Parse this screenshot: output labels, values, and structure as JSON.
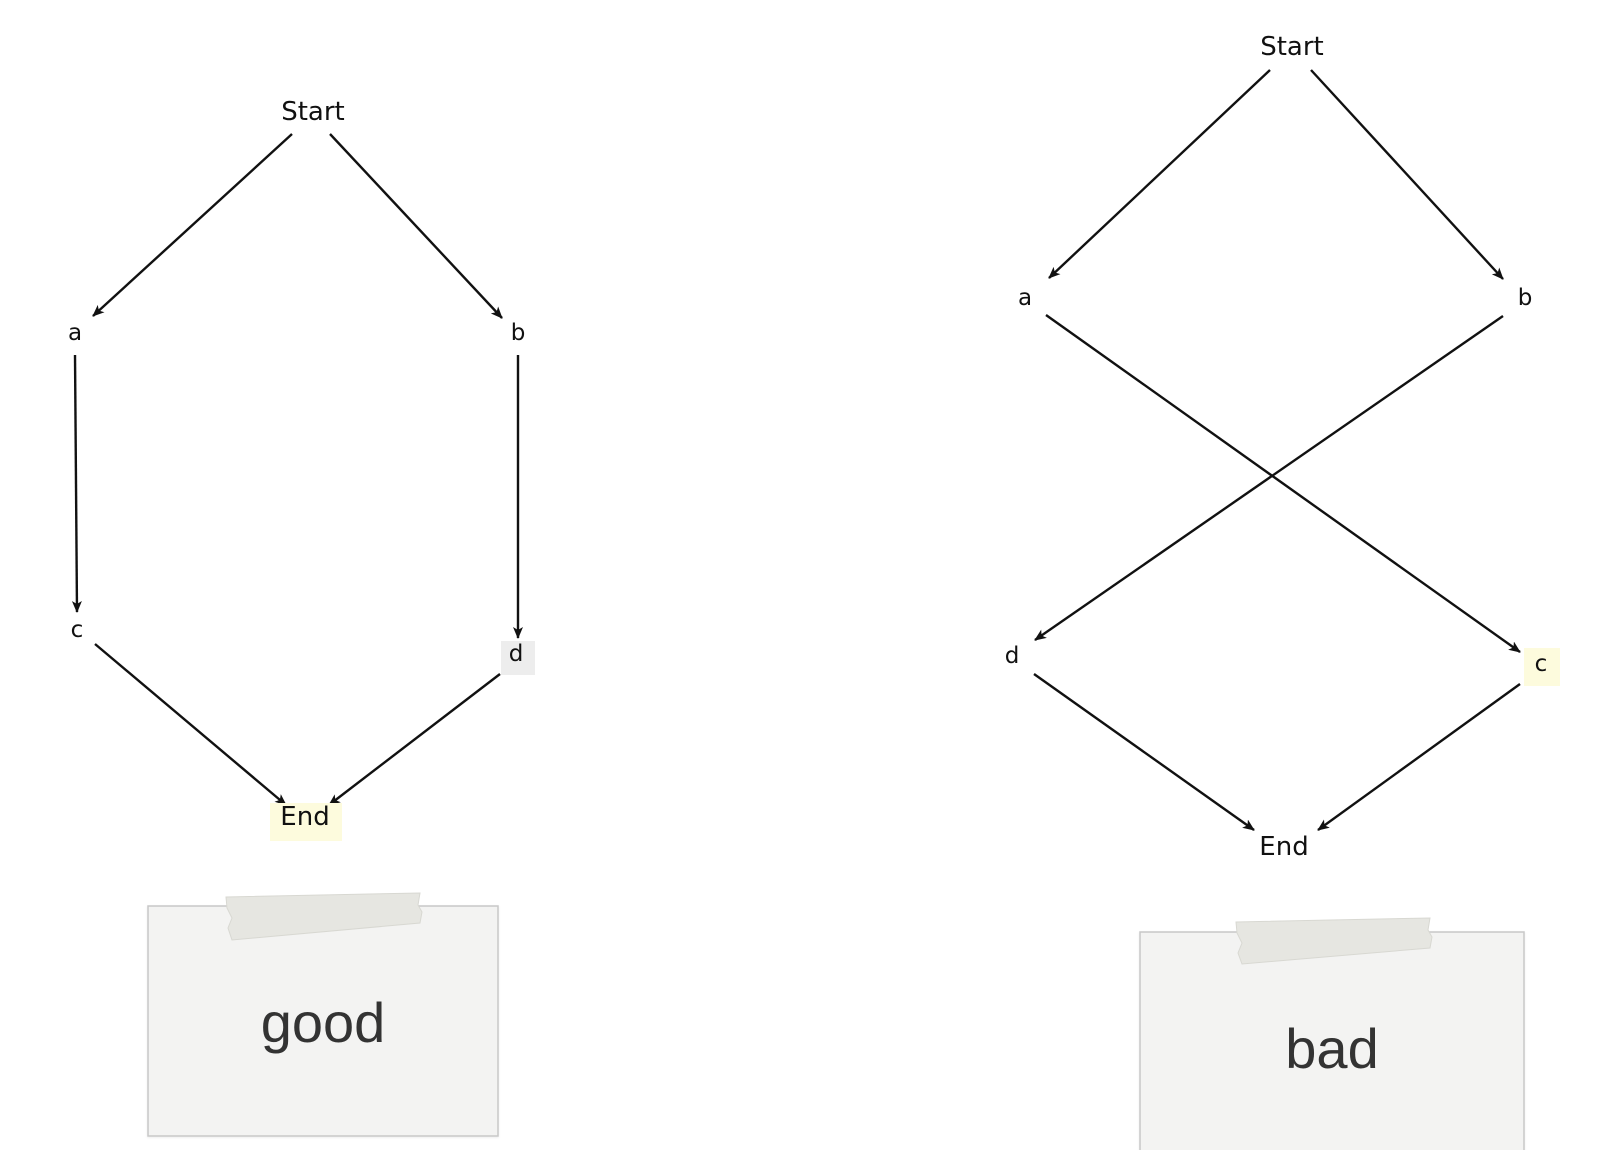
{
  "diagrams": [
    {
      "id": "good",
      "nodes": [
        {
          "id": "start",
          "label": "Start",
          "highlight": null
        },
        {
          "id": "a",
          "label": "a",
          "highlight": null
        },
        {
          "id": "b",
          "label": "b",
          "highlight": null
        },
        {
          "id": "c",
          "label": "c",
          "highlight": null
        },
        {
          "id": "d",
          "label": "d",
          "highlight": "#ededed"
        },
        {
          "id": "end",
          "label": "End",
          "highlight": "#fdfbdd"
        }
      ],
      "edges": [
        {
          "from": "start",
          "to": "a"
        },
        {
          "from": "start",
          "to": "b"
        },
        {
          "from": "a",
          "to": "c"
        },
        {
          "from": "b",
          "to": "d"
        },
        {
          "from": "c",
          "to": "end"
        },
        {
          "from": "d",
          "to": "end"
        }
      ],
      "card_label": "good"
    },
    {
      "id": "bad",
      "nodes": [
        {
          "id": "start",
          "label": "Start",
          "highlight": null
        },
        {
          "id": "a",
          "label": "a",
          "highlight": null
        },
        {
          "id": "b",
          "label": "b",
          "highlight": null
        },
        {
          "id": "d",
          "label": "d",
          "highlight": null
        },
        {
          "id": "c",
          "label": "c",
          "highlight": "#fdfbdd"
        },
        {
          "id": "end",
          "label": "End",
          "highlight": null
        }
      ],
      "edges": [
        {
          "from": "start",
          "to": "a"
        },
        {
          "from": "start",
          "to": "b"
        },
        {
          "from": "a",
          "to": "c"
        },
        {
          "from": "b",
          "to": "d"
        },
        {
          "from": "d",
          "to": "end"
        },
        {
          "from": "c",
          "to": "end"
        }
      ],
      "card_label": "bad"
    }
  ],
  "colors": {
    "edge": "#111111",
    "card_background": "#f3f3f2",
    "card_border": "#c8c8c8",
    "tape": "#e6e6e1",
    "card_text": "#333333"
  }
}
